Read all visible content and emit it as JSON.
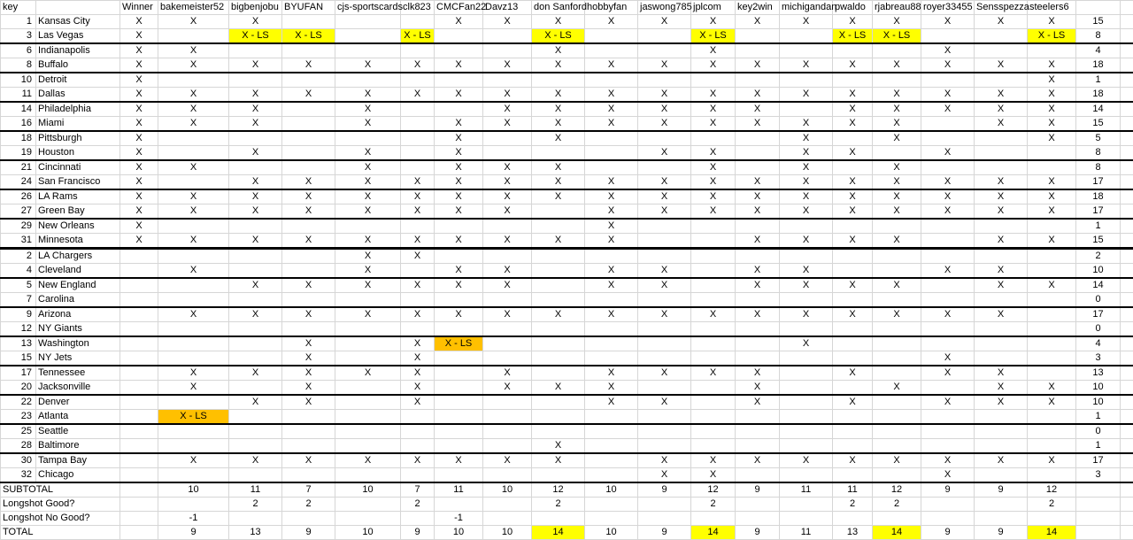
{
  "table": {
    "x_text": "X",
    "ls_text": "X - LS",
    "headers": [
      "key",
      "",
      "Winner",
      "bakemeister52",
      "bigbenjobu",
      "BYUFAN",
      "cjs-sportscards",
      "clk823",
      "CMCFan22",
      "Davz13",
      "don Sanford",
      "hobbyfan",
      "jaswong785",
      "jplcom",
      "key2win",
      "michigandan",
      "pwaldo",
      "rjabreau88",
      "royer33455",
      "Sensspezza",
      "steelers6",
      ""
    ],
    "players": [
      "bakemeister52",
      "bigbenjobu",
      "BYUFAN",
      "cjs-sportscards",
      "clk823",
      "CMCFan22",
      "Davz13",
      "don Sanford",
      "hobbyfan",
      "jaswong785",
      "jplcom",
      "key2win",
      "michigandan",
      "pwaldo",
      "rjabreau88",
      "royer33455",
      "Sensspezza",
      "steelers6"
    ],
    "rows": [
      {
        "key": "1",
        "team": "Kansas City",
        "winner": "X",
        "picks": [
          "X",
          "X",
          "",
          "",
          "",
          "X",
          "X",
          "X",
          "X",
          "X",
          "X",
          "X",
          "X",
          "X",
          "X",
          "X",
          "X",
          "X"
        ],
        "total": "15",
        "sep": ""
      },
      {
        "key": "3",
        "team": "Las Vegas",
        "winner": "X",
        "picks": [
          "",
          "LS",
          "LS",
          "",
          "LS",
          "",
          "",
          "LS",
          "",
          "",
          "LS",
          "",
          "",
          "LS",
          "LS",
          "",
          "",
          "LS"
        ],
        "total": "8",
        "sep": "game"
      },
      {
        "key": "6",
        "team": "Indianapolis",
        "winner": "X",
        "picks": [
          "X",
          "",
          "",
          "",
          "",
          "",
          "",
          "X",
          "",
          "",
          "X",
          "",
          "",
          "",
          "",
          "X",
          "",
          ""
        ],
        "total": "4",
        "sep": ""
      },
      {
        "key": "8",
        "team": "Buffalo",
        "winner": "X",
        "picks": [
          "X",
          "X",
          "X",
          "X",
          "X",
          "X",
          "X",
          "X",
          "X",
          "X",
          "X",
          "X",
          "X",
          "X",
          "X",
          "X",
          "X",
          "X"
        ],
        "total": "18",
        "sep": "game"
      },
      {
        "key": "10",
        "team": "Detroit",
        "winner": "X",
        "picks": [
          "",
          "",
          "",
          "",
          "",
          "",
          "",
          "",
          "",
          "",
          "",
          "",
          "",
          "",
          "",
          "",
          "",
          "X"
        ],
        "total": "1",
        "sep": ""
      },
      {
        "key": "11",
        "team": "Dallas",
        "winner": "X",
        "picks": [
          "X",
          "X",
          "X",
          "X",
          "X",
          "X",
          "X",
          "X",
          "X",
          "X",
          "X",
          "X",
          "X",
          "X",
          "X",
          "X",
          "X",
          "X"
        ],
        "total": "18",
        "sep": "game"
      },
      {
        "key": "14",
        "team": "Philadelphia",
        "winner": "X",
        "picks": [
          "X",
          "X",
          "",
          "X",
          "",
          "",
          "X",
          "X",
          "X",
          "X",
          "X",
          "X",
          "",
          "X",
          "X",
          "X",
          "X",
          "X"
        ],
        "total": "14",
        "sep": ""
      },
      {
        "key": "16",
        "team": "Miami",
        "winner": "X",
        "picks": [
          "X",
          "X",
          "",
          "X",
          "",
          "X",
          "X",
          "X",
          "X",
          "X",
          "X",
          "X",
          "X",
          "X",
          "X",
          "",
          "X",
          "X"
        ],
        "total": "15",
        "sep": "game"
      },
      {
        "key": "18",
        "team": "Pittsburgh",
        "winner": "X",
        "picks": [
          "",
          "",
          "",
          "",
          "",
          "X",
          "",
          "X",
          "",
          "",
          "",
          "",
          "X",
          "",
          "X",
          "",
          "",
          "X"
        ],
        "total": "5",
        "sep": ""
      },
      {
        "key": "19",
        "team": "Houston",
        "winner": "X",
        "picks": [
          "",
          "X",
          "",
          "X",
          "",
          "X",
          "",
          "",
          "",
          "X",
          "X",
          "",
          "X",
          "X",
          "",
          "X",
          "",
          ""
        ],
        "total": "8",
        "sep": "game"
      },
      {
        "key": "21",
        "team": "Cincinnati",
        "winner": "X",
        "picks": [
          "X",
          "",
          "",
          "X",
          "",
          "X",
          "X",
          "X",
          "",
          "",
          "X",
          "",
          "X",
          "",
          "X",
          "",
          "",
          ""
        ],
        "total": "8",
        "sep": ""
      },
      {
        "key": "24",
        "team": "San Francisco",
        "winner": "X",
        "picks": [
          "",
          "X",
          "X",
          "X",
          "X",
          "X",
          "X",
          "X",
          "X",
          "X",
          "X",
          "X",
          "X",
          "X",
          "X",
          "X",
          "X",
          "X"
        ],
        "total": "17",
        "sep": "game"
      },
      {
        "key": "26",
        "team": "LA Rams",
        "winner": "X",
        "picks": [
          "X",
          "X",
          "X",
          "X",
          "X",
          "X",
          "X",
          "X",
          "X",
          "X",
          "X",
          "X",
          "X",
          "X",
          "X",
          "X",
          "X",
          "X"
        ],
        "total": "18",
        "sep": ""
      },
      {
        "key": "27",
        "team": "Green Bay",
        "winner": "X",
        "picks": [
          "X",
          "X",
          "X",
          "X",
          "X",
          "X",
          "X",
          "",
          "X",
          "X",
          "X",
          "X",
          "X",
          "X",
          "X",
          "X",
          "X",
          "X"
        ],
        "total": "17",
        "sep": "game"
      },
      {
        "key": "29",
        "team": "New Orleans",
        "winner": "X",
        "picks": [
          "",
          "",
          "",
          "",
          "",
          "",
          "",
          "",
          "X",
          "",
          "",
          "",
          "",
          "",
          "",
          "",
          "",
          ""
        ],
        "total": "1",
        "sep": ""
      },
      {
        "key": "31",
        "team": "Minnesota",
        "winner": "X",
        "picks": [
          "X",
          "X",
          "X",
          "X",
          "X",
          "X",
          "X",
          "X",
          "X",
          "",
          "",
          "X",
          "X",
          "X",
          "X",
          "",
          "X",
          "X"
        ],
        "total": "15",
        "sep": "section"
      },
      {
        "key": "2",
        "team": "LA Chargers",
        "winner": "",
        "picks": [
          "",
          "",
          "",
          "X",
          "X",
          "",
          "",
          "",
          "",
          "",
          "",
          "",
          "",
          "",
          "",
          "",
          "",
          ""
        ],
        "total": "2",
        "sep": ""
      },
      {
        "key": "4",
        "team": "Cleveland",
        "winner": "",
        "picks": [
          "X",
          "",
          "",
          "X",
          "",
          "X",
          "X",
          "",
          "X",
          "X",
          "",
          "X",
          "X",
          "",
          "",
          "X",
          "X",
          ""
        ],
        "total": "10",
        "sep": "game"
      },
      {
        "key": "5",
        "team": "New England",
        "winner": "",
        "picks": [
          "",
          "X",
          "X",
          "X",
          "X",
          "X",
          "X",
          "",
          "X",
          "X",
          "",
          "X",
          "X",
          "X",
          "X",
          "",
          "X",
          "X"
        ],
        "total": "14",
        "sep": ""
      },
      {
        "key": "7",
        "team": "Carolina",
        "winner": "",
        "picks": [
          "",
          "",
          "",
          "",
          "",
          "",
          "",
          "",
          "",
          "",
          "",
          "",
          "",
          "",
          "",
          "",
          "",
          ""
        ],
        "total": "0",
        "sep": "game"
      },
      {
        "key": "9",
        "team": "Arizona",
        "winner": "",
        "picks": [
          "X",
          "X",
          "X",
          "X",
          "X",
          "X",
          "X",
          "X",
          "X",
          "X",
          "X",
          "X",
          "X",
          "X",
          "X",
          "X",
          "X",
          ""
        ],
        "total": "17",
        "sep": ""
      },
      {
        "key": "12",
        "team": "NY Giants",
        "winner": "",
        "picks": [
          "",
          "",
          "",
          "",
          "",
          "",
          "",
          "",
          "",
          "",
          "",
          "",
          "",
          "",
          "",
          "",
          "",
          ""
        ],
        "total": "0",
        "sep": "game"
      },
      {
        "key": "13",
        "team": "Washington",
        "winner": "",
        "picks": [
          "",
          "",
          "X",
          "",
          "X",
          "LSO",
          "",
          "",
          "",
          "",
          "",
          "",
          "X",
          "",
          "",
          "",
          "",
          ""
        ],
        "total": "4",
        "sep": ""
      },
      {
        "key": "15",
        "team": "NY Jets",
        "winner": "",
        "picks": [
          "",
          "",
          "X",
          "",
          "X",
          "",
          "",
          "",
          "",
          "",
          "",
          "",
          "",
          "",
          "",
          "X",
          "",
          ""
        ],
        "total": "3",
        "sep": "game"
      },
      {
        "key": "17",
        "team": "Tennessee",
        "winner": "",
        "picks": [
          "X",
          "X",
          "X",
          "X",
          "X",
          "",
          "X",
          "",
          "X",
          "X",
          "X",
          "X",
          "",
          "X",
          "",
          "X",
          "X",
          ""
        ],
        "total": "13",
        "sep": ""
      },
      {
        "key": "20",
        "team": "Jacksonville",
        "winner": "",
        "picks": [
          "X",
          "",
          "X",
          "",
          "X",
          "",
          "X",
          "X",
          "X",
          "",
          "",
          "X",
          "",
          "",
          "X",
          "",
          "X",
          "X"
        ],
        "total": "10",
        "sep": "game"
      },
      {
        "key": "22",
        "team": "Denver",
        "winner": "",
        "picks": [
          "",
          "X",
          "X",
          "",
          "X",
          "",
          "",
          "",
          "X",
          "X",
          "",
          "X",
          "",
          "X",
          "",
          "X",
          "X",
          "X"
        ],
        "total": "10",
        "sep": ""
      },
      {
        "key": "23",
        "team": "Atlanta",
        "winner": "",
        "picks": [
          "LSO",
          "",
          "",
          "",
          "",
          "",
          "",
          "",
          "",
          "",
          "",
          "",
          "",
          "",
          "",
          "",
          "",
          ""
        ],
        "total": "1",
        "sep": "game"
      },
      {
        "key": "25",
        "team": "Seattle",
        "winner": "",
        "picks": [
          "",
          "",
          "",
          "",
          "",
          "",
          "",
          "",
          "",
          "",
          "",
          "",
          "",
          "",
          "",
          "",
          "",
          ""
        ],
        "total": "0",
        "sep": ""
      },
      {
        "key": "28",
        "team": "Baltimore",
        "winner": "",
        "picks": [
          "",
          "",
          "",
          "",
          "",
          "",
          "",
          "X",
          "",
          "",
          "",
          "",
          "",
          "",
          "",
          "",
          "",
          ""
        ],
        "total": "1",
        "sep": "game"
      },
      {
        "key": "30",
        "team": "Tampa Bay",
        "winner": "",
        "picks": [
          "X",
          "X",
          "X",
          "X",
          "X",
          "X",
          "X",
          "X",
          "",
          "X",
          "X",
          "X",
          "X",
          "X",
          "X",
          "X",
          "X",
          "X"
        ],
        "total": "17",
        "sep": ""
      },
      {
        "key": "32",
        "team": "Chicago",
        "winner": "",
        "picks": [
          "",
          "",
          "",
          "",
          "",
          "",
          "",
          "",
          "",
          "X",
          "X",
          "",
          "",
          "",
          "",
          "X",
          "",
          ""
        ],
        "total": "3",
        "sep": "game"
      }
    ],
    "summary": [
      {
        "label": "SUBTOTAL",
        "values": [
          "10",
          "11",
          "7",
          "10",
          "7",
          "11",
          "10",
          "12",
          "10",
          "9",
          "12",
          "9",
          "11",
          "11",
          "12",
          "9",
          "9",
          "12"
        ],
        "total": "",
        "highlight_indices": []
      },
      {
        "label": "Longshot Good?",
        "values": [
          "",
          "2",
          "2",
          "",
          "2",
          "",
          "",
          "2",
          "",
          "",
          "2",
          "",
          "",
          "2",
          "2",
          "",
          "",
          "2"
        ],
        "total": "",
        "highlight_indices": []
      },
      {
        "label": "Longshot No Good?",
        "values": [
          "-1",
          "",
          "",
          "",
          "",
          "-1",
          "",
          "",
          "",
          "",
          "",
          "",
          "",
          "",
          "",
          "",
          "",
          ""
        ],
        "total": "",
        "highlight_indices": []
      },
      {
        "label": "TOTAL",
        "values": [
          "9",
          "13",
          "9",
          "10",
          "9",
          "10",
          "10",
          "14",
          "10",
          "9",
          "14",
          "9",
          "11",
          "13",
          "14",
          "9",
          "9",
          "14"
        ],
        "total": "",
        "highlight_indices": [
          7,
          10,
          14,
          17
        ]
      }
    ]
  },
  "colors": {
    "highlight_yellow": "#ffff00",
    "highlight_orange": "#ffc000",
    "gridline": "#d6d6d6",
    "separator": "#000000"
  }
}
